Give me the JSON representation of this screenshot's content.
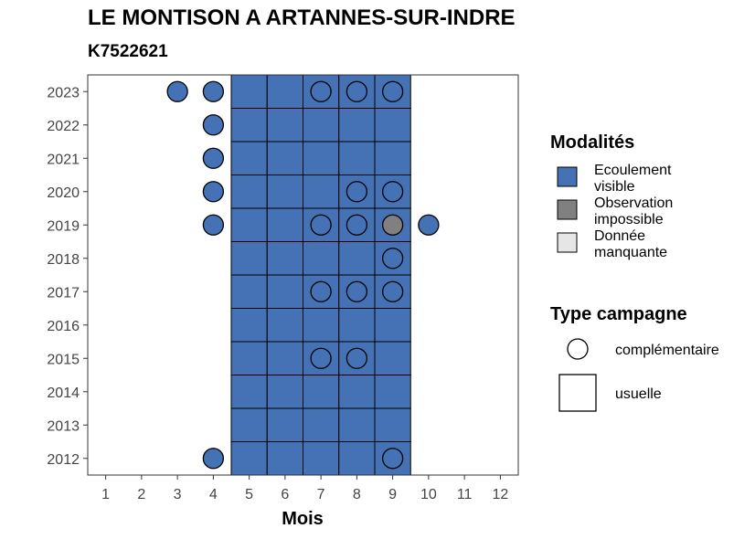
{
  "title": "LE MONTISON A ARTANNES-SUR-INDRE",
  "subtitle": "K7522621",
  "colors": {
    "ecoulement_visible": "#4472B4",
    "observation_impossible": "#808080",
    "donnee_manquante": "#E6E6E6"
  },
  "legend": {
    "modalites": {
      "title": "Modalités",
      "items": [
        {
          "lines": [
            "Ecoulement",
            "visible"
          ],
          "color": "#4472B4"
        },
        {
          "lines": [
            "Observation",
            "impossible"
          ],
          "color": "#808080"
        },
        {
          "lines": [
            "Donnée",
            "manquante"
          ],
          "color": "#E6E6E6"
        }
      ]
    },
    "type_campagne": {
      "title": "Type campagne",
      "items": [
        {
          "label": "complémentaire",
          "shape": "circle"
        },
        {
          "label": "usuelle",
          "shape": "square"
        }
      ]
    }
  },
  "chart_data": {
    "type": "heatmap",
    "xlabel": "Mois",
    "ylabel": "",
    "x_ticks": [
      "1",
      "2",
      "3",
      "4",
      "5",
      "6",
      "7",
      "8",
      "9",
      "10",
      "11",
      "12"
    ],
    "y_ticks": [
      "2012",
      "2013",
      "2014",
      "2015",
      "2016",
      "2017",
      "2018",
      "2019",
      "2020",
      "2021",
      "2022",
      "2023"
    ],
    "xlim": [
      0.5,
      12.5
    ],
    "ylim": [
      2011.5,
      2023.5
    ],
    "grid": false,
    "legend_position": "right",
    "usuelle": {
      "months": [
        5,
        6,
        7,
        8,
        9
      ],
      "years": [
        2012,
        2013,
        2014,
        2015,
        2016,
        2017,
        2018,
        2019,
        2020,
        2021,
        2022,
        2023
      ],
      "modalite": "Ecoulement visible"
    },
    "complementaire": [
      {
        "year": 2023,
        "month": 3,
        "modalite": "Ecoulement visible"
      },
      {
        "year": 2023,
        "month": 4,
        "modalite": "Ecoulement visible"
      },
      {
        "year": 2023,
        "month": 7,
        "modalite": "Ecoulement visible"
      },
      {
        "year": 2023,
        "month": 8,
        "modalite": "Ecoulement visible"
      },
      {
        "year": 2023,
        "month": 9,
        "modalite": "Ecoulement visible"
      },
      {
        "year": 2022,
        "month": 4,
        "modalite": "Ecoulement visible"
      },
      {
        "year": 2021,
        "month": 4,
        "modalite": "Ecoulement visible"
      },
      {
        "year": 2020,
        "month": 4,
        "modalite": "Ecoulement visible"
      },
      {
        "year": 2020,
        "month": 8,
        "modalite": "Ecoulement visible"
      },
      {
        "year": 2020,
        "month": 9,
        "modalite": "Ecoulement visible"
      },
      {
        "year": 2019,
        "month": 4,
        "modalite": "Ecoulement visible"
      },
      {
        "year": 2019,
        "month": 7,
        "modalite": "Ecoulement visible"
      },
      {
        "year": 2019,
        "month": 8,
        "modalite": "Ecoulement visible"
      },
      {
        "year": 2019,
        "month": 9,
        "modalite": "Observation impossible"
      },
      {
        "year": 2019,
        "month": 10,
        "modalite": "Ecoulement visible"
      },
      {
        "year": 2018,
        "month": 9,
        "modalite": "Ecoulement visible"
      },
      {
        "year": 2017,
        "month": 7,
        "modalite": "Ecoulement visible"
      },
      {
        "year": 2017,
        "month": 8,
        "modalite": "Ecoulement visible"
      },
      {
        "year": 2017,
        "month": 9,
        "modalite": "Ecoulement visible"
      },
      {
        "year": 2015,
        "month": 7,
        "modalite": "Ecoulement visible"
      },
      {
        "year": 2015,
        "month": 8,
        "modalite": "Ecoulement visible"
      },
      {
        "year": 2012,
        "month": 4,
        "modalite": "Ecoulement visible"
      },
      {
        "year": 2012,
        "month": 9,
        "modalite": "Ecoulement visible"
      }
    ]
  }
}
